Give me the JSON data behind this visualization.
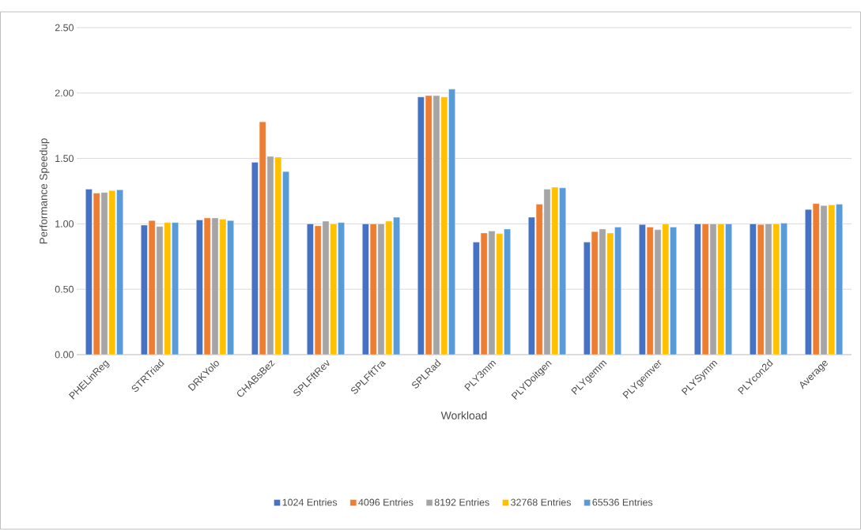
{
  "chart_data": {
    "type": "bar",
    "xlabel": "Workload",
    "ylabel": "Performance Speedup",
    "categories": [
      "PHELinReg",
      "STRTriad",
      "DRKYolo",
      "CHABsBez",
      "SPLFftRev",
      "SPLFftTra",
      "SPLRad",
      "PLY3mm",
      "PLYDoitgen",
      "PLYgemm",
      "PLYgemver",
      "PLYSymm",
      "PLYcon2d",
      "Average"
    ],
    "series": [
      {
        "name": "1024 Entries",
        "color": "#4472c4",
        "values": [
          1.265,
          0.99,
          1.03,
          1.47,
          1.0,
          1.0,
          1.97,
          0.86,
          1.05,
          0.86,
          0.995,
          1.0,
          1.0,
          1.11
        ]
      },
      {
        "name": "4096 Entries",
        "color": "#ed7d31",
        "values": [
          1.235,
          1.025,
          1.045,
          1.78,
          0.985,
          1.0,
          1.98,
          0.93,
          1.15,
          0.94,
          0.975,
          1.0,
          0.995,
          1.155
        ]
      },
      {
        "name": "8192 Entries",
        "color": "#a5a5a5",
        "values": [
          1.24,
          0.98,
          1.045,
          1.515,
          1.02,
          1.0,
          1.98,
          0.945,
          1.265,
          0.96,
          0.955,
          1.0,
          1.0,
          1.14
        ]
      },
      {
        "name": "32768 Entries",
        "color": "#ffc000",
        "values": [
          1.255,
          1.01,
          1.035,
          1.51,
          1.0,
          1.02,
          1.97,
          0.925,
          1.28,
          0.93,
          1.0,
          1.0,
          1.0,
          1.145
        ]
      },
      {
        "name": "65536 Entries",
        "color": "#5b9bd5",
        "values": [
          1.26,
          1.01,
          1.025,
          1.4,
          1.01,
          1.05,
          2.03,
          0.96,
          1.275,
          0.975,
          0.975,
          1.0,
          1.005,
          1.15
        ]
      }
    ],
    "ylim": [
      0,
      2.5
    ],
    "yticks": [
      {
        "value": 0,
        "label": "0.00"
      },
      {
        "value": 0.5,
        "label": "0.50"
      },
      {
        "value": 1,
        "label": "1.00"
      },
      {
        "value": 1.5,
        "label": "1.50"
      },
      {
        "value": 2,
        "label": "2.00"
      },
      {
        "value": 2.5,
        "label": "2.50"
      }
    ],
    "grid": "y",
    "legend": "bottom"
  }
}
